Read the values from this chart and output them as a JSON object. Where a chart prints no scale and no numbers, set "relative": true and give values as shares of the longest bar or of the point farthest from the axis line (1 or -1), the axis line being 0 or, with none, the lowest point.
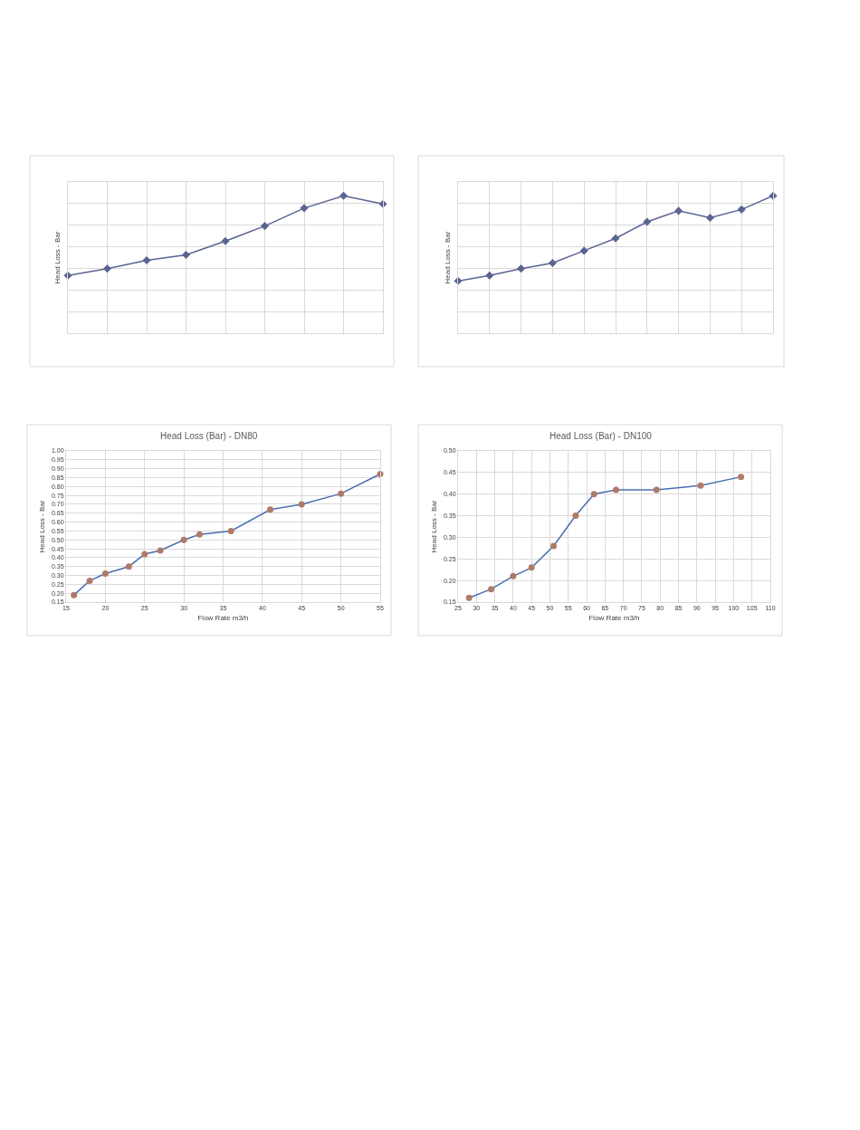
{
  "chart_data": [
    {
      "type": "line",
      "ylabel": "Head Loss - Bar",
      "categories": [
        null,
        null,
        null,
        null,
        null,
        null,
        null,
        null,
        null
      ],
      "relative": true,
      "grid": true,
      "marker": "diamond",
      "series": [
        {
          "color": "#5a6490",
          "values": [
            0.42,
            0.47,
            0.53,
            0.57,
            0.67,
            0.78,
            0.91,
            1,
            0.94
          ]
        }
      ]
    },
    {
      "type": "line",
      "ylabel": "Head Loss - Bar",
      "categories": [
        null,
        null,
        null,
        null,
        null,
        null,
        null,
        null,
        null,
        null,
        null
      ],
      "relative": true,
      "grid": true,
      "marker": "diamond",
      "series": [
        {
          "color": "#5a6490",
          "values": [
            0.38,
            0.42,
            0.47,
            0.51,
            0.6,
            0.69,
            0.81,
            0.89,
            0.84,
            0.9,
            1
          ]
        }
      ]
    },
    {
      "type": "line",
      "title": "Head Loss (Bar) - DN80",
      "xlabel": "Flow Rate m3/h",
      "ylabel": "Head Loss - Bar",
      "grid": true,
      "marker": "circle",
      "x": [
        16,
        18,
        20,
        23,
        25,
        27,
        30,
        32,
        36,
        41,
        45,
        50,
        55
      ],
      "series": [
        {
          "color": "#4a6fb0",
          "colors": [
            "#b07a6a",
            "#b07a6a",
            "#b07a6a",
            "#b07a6a",
            "#b07a6a",
            "#b07a6a",
            "#b07a6a",
            "#b07a6a",
            "#b07a6a",
            "#b07a6a",
            "#b07a6a",
            "#b07a6a",
            "#b07a6a"
          ],
          "values": [
            0.19,
            0.27,
            0.31,
            0.35,
            0.42,
            0.44,
            0.5,
            0.53,
            0.55,
            0.67,
            0.7,
            0.76,
            0.87
          ]
        }
      ],
      "xlim": [
        15,
        55
      ],
      "xticks": [
        15,
        20,
        25,
        30,
        35,
        40,
        45,
        50,
        55
      ],
      "ylim": [
        0.15,
        1.0
      ],
      "yticks": [
        {
          "value": 0.15,
          "label": "0.15"
        },
        {
          "value": 0.2,
          "label": "0.20"
        },
        {
          "value": 0.25,
          "label": "0.25"
        },
        {
          "value": 0.3,
          "label": "0.30"
        },
        {
          "value": 0.35,
          "label": "0.35"
        },
        {
          "value": 0.4,
          "label": "0.40"
        },
        {
          "value": 0.45,
          "label": "0.45"
        },
        {
          "value": 0.5,
          "label": "0.50"
        },
        {
          "value": 0.55,
          "label": "0.55"
        },
        {
          "value": 0.6,
          "label": "0.60"
        },
        {
          "value": 0.65,
          "label": "0.65"
        },
        {
          "value": 0.7,
          "label": "0.70"
        },
        {
          "value": 0.75,
          "label": "0.75"
        },
        {
          "value": 0.8,
          "label": "0.80"
        },
        {
          "value": 0.85,
          "label": "0.85"
        },
        {
          "value": 0.9,
          "label": "0.90"
        },
        {
          "value": 0.95,
          "label": "0.95"
        },
        {
          "value": 1.0,
          "label": "1.00"
        }
      ]
    },
    {
      "type": "line",
      "title": "Head Loss (Bar) - DN100",
      "xlabel": "Flow Rate m3/h",
      "ylabel": "Head Loss - Bar",
      "grid": true,
      "marker": "circle",
      "x": [
        28,
        34,
        40,
        45,
        51,
        57,
        62,
        68,
        79,
        91,
        102
      ],
      "series": [
        {
          "color": "#4a6fb0",
          "colors": [
            "#b07a6a",
            "#b07a6a",
            "#b07a6a",
            "#b07a6a",
            "#b07a6a",
            "#b07a6a",
            "#b07a6a",
            "#b07a6a",
            "#b07a6a",
            "#b07a6a",
            "#b07a6a"
          ],
          "values": [
            0.16,
            0.18,
            0.21,
            0.23,
            0.28,
            0.35,
            0.4,
            0.41,
            0.41,
            0.42,
            0.44
          ]
        }
      ],
      "xlim": [
        25,
        110
      ],
      "xticks": [
        25,
        30,
        35,
        40,
        45,
        50,
        55,
        60,
        65,
        70,
        75,
        80,
        85,
        90,
        95,
        100,
        105,
        110
      ],
      "ylim": [
        0.15,
        0.5
      ],
      "yticks": [
        {
          "value": 0.15,
          "label": "0.15"
        },
        {
          "value": 0.2,
          "label": "0.20"
        },
        {
          "value": 0.25,
          "label": "0.25"
        },
        {
          "value": 0.3,
          "label": "0.30"
        },
        {
          "value": 0.35,
          "label": "0.35"
        },
        {
          "value": 0.4,
          "label": "0.40"
        },
        {
          "value": 0.45,
          "label": "0.45"
        },
        {
          "value": 0.5,
          "label": "0.50"
        }
      ]
    }
  ]
}
